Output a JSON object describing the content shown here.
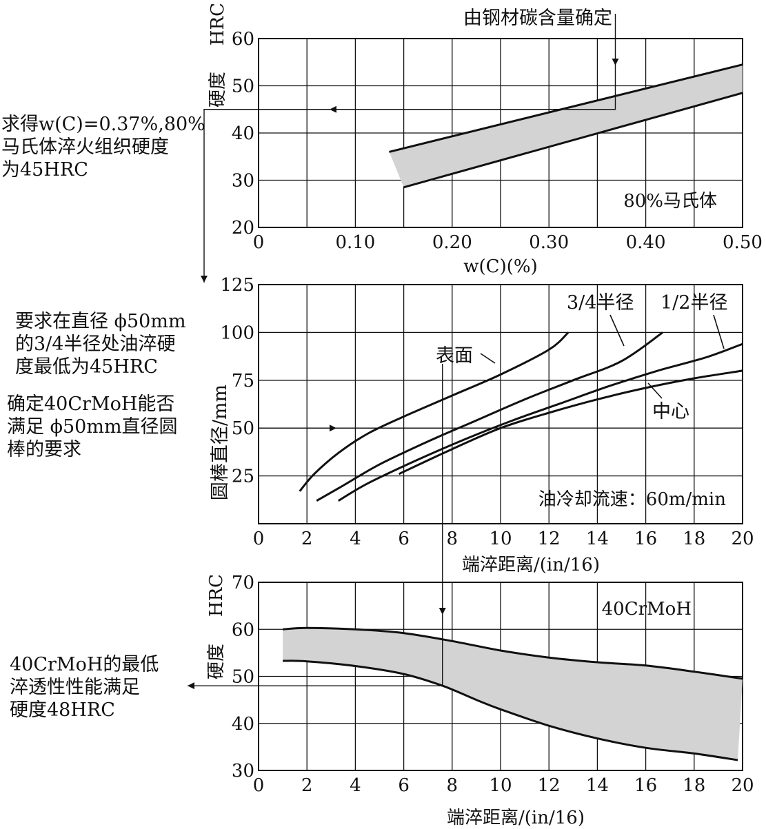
{
  "notes": {
    "top_left": "求得w(C)=0.37%,80%\n马氏体淬火组织硬度\n为45HRC",
    "mid_left_1": "要求在直径 ϕ50mm\n的3/4半径处油淬硬\n度最低为45HRC",
    "mid_left_2": "确定40CrMoH能否\n满足 ϕ50mm直径圆\n棒的要求",
    "bottom_left": "40CrMoH的最低\n淬透性性能满足\n硬度48HRC"
  },
  "chart_data": [
    {
      "id": "top",
      "type": "area",
      "title": "",
      "annotation_top": "由钢材碳含量确定",
      "label_box": "80%马氏体",
      "xlabel": "w(C)(%)",
      "ylabel_unit": "HRC",
      "ylabel_text": "硬度",
      "xlim": [
        0,
        0.5
      ],
      "ylim": [
        20,
        60
      ],
      "xticks": [
        "0",
        "0.10",
        "0.20",
        "0.30",
        "0.40",
        "0.50"
      ],
      "yticks": [
        "20",
        "30",
        "40",
        "50",
        "60"
      ],
      "band": {
        "upper": [
          [
            0.135,
            36
          ],
          [
            0.5,
            54.5
          ]
        ],
        "lower": [
          [
            0.15,
            28.5
          ],
          [
            0.5,
            48.5
          ]
        ]
      },
      "guide": {
        "carbon": 0.37,
        "hardness": 45
      }
    },
    {
      "id": "middle",
      "type": "line",
      "label_box": "油冷却流速：60m/min",
      "xlabel": "端淬距离/(in/16)",
      "ylabel": "圆棒直径/mm",
      "xlim": [
        0,
        20
      ],
      "ylim": [
        0,
        125
      ],
      "xticks": [
        "0",
        "2",
        "4",
        "6",
        "8",
        "10",
        "12",
        "14",
        "16",
        "18",
        "20"
      ],
      "yticks": [
        "25",
        "50",
        "75",
        "100",
        "125"
      ],
      "series": [
        {
          "name": "表面",
          "points": [
            [
              1.7,
              17
            ],
            [
              2.3,
              26
            ],
            [
              3.3,
              37
            ],
            [
              4.5,
              47
            ],
            [
              6,
              56
            ],
            [
              8,
              67
            ],
            [
              10,
              78
            ],
            [
              12,
              91
            ],
            [
              12.8,
              100
            ]
          ]
        },
        {
          "name": "3/4半径",
          "points": [
            [
              2.4,
              12
            ],
            [
              3.5,
              20
            ],
            [
              5,
              31
            ],
            [
              7,
              43
            ],
            [
              9,
              54
            ],
            [
              11,
              65
            ],
            [
              13,
              75
            ],
            [
              15,
              85
            ],
            [
              16.7,
              100
            ]
          ]
        },
        {
          "name": "1/2半径",
          "points": [
            [
              3.3,
              12
            ],
            [
              4.5,
              21
            ],
            [
              6.5,
              33
            ],
            [
              8.5,
              44
            ],
            [
              10.5,
              54
            ],
            [
              12.5,
              63
            ],
            [
              14.5,
              72
            ],
            [
              16.5,
              80
            ],
            [
              18.5,
              87
            ],
            [
              20,
              94
            ]
          ]
        },
        {
          "name": "中心",
          "points": [
            [
              5.8,
              26
            ],
            [
              8,
              39
            ],
            [
              10,
              50
            ],
            [
              12,
              58
            ],
            [
              14,
              65
            ],
            [
              16,
              71
            ],
            [
              18,
              76
            ],
            [
              20,
              80
            ]
          ]
        }
      ],
      "guide": {
        "diameter": 50,
        "distance": 7.6
      }
    },
    {
      "id": "bottom",
      "type": "area",
      "label_box": "40CrMoH",
      "xlabel": "端淬距离/(in/16)",
      "ylabel_unit": "HRC",
      "ylabel_text": "硬度",
      "xlim": [
        0,
        20
      ],
      "ylim": [
        30,
        70
      ],
      "xticks": [
        "0",
        "2",
        "4",
        "6",
        "8",
        "10",
        "12",
        "14",
        "16",
        "18",
        "20"
      ],
      "yticks": [
        "30",
        "40",
        "50",
        "60",
        "70"
      ],
      "band": {
        "upper": [
          [
            1,
            60
          ],
          [
            2,
            60.3
          ],
          [
            4,
            60
          ],
          [
            6,
            59.2
          ],
          [
            8,
            57.5
          ],
          [
            10,
            55.5
          ],
          [
            12,
            54
          ],
          [
            14,
            53
          ],
          [
            16,
            52.3
          ],
          [
            18,
            51
          ],
          [
            20,
            49.5
          ]
        ],
        "lower": [
          [
            1,
            53.3
          ],
          [
            2,
            53.2
          ],
          [
            4,
            52.2
          ],
          [
            6,
            50.5
          ],
          [
            7.6,
            48
          ],
          [
            9,
            45
          ],
          [
            10,
            43
          ],
          [
            12,
            39.5
          ],
          [
            14,
            36.8
          ],
          [
            16,
            34.8
          ],
          [
            18,
            33.6
          ],
          [
            19.8,
            32.2
          ]
        ]
      },
      "guide": {
        "distance": 7.6,
        "hardness": 48
      }
    }
  ]
}
